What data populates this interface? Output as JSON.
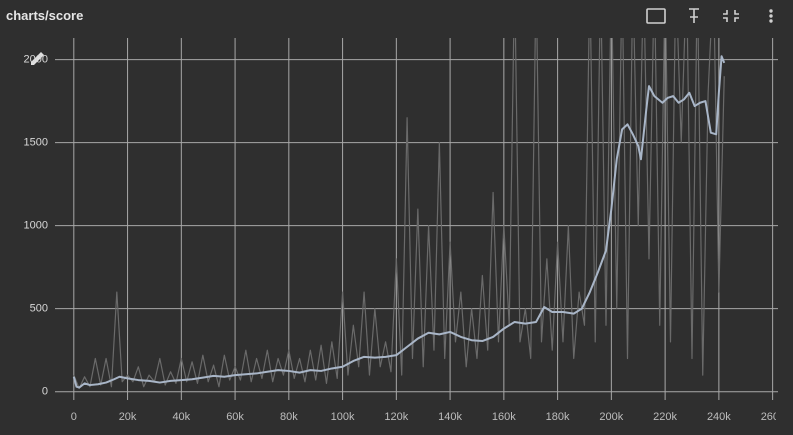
{
  "chart_data": {
    "type": "line",
    "title": "charts/score",
    "xlim": [
      -7000,
      262000
    ],
    "ylim": [
      -50,
      2130
    ],
    "grid": true,
    "xticks": [
      0,
      {
        "value": 20000,
        "label": "20k"
      },
      {
        "value": 40000,
        "label": "40k"
      },
      {
        "value": 60000,
        "label": "60k"
      },
      {
        "value": 80000,
        "label": "80k"
      },
      {
        "value": 100000,
        "label": "100k"
      },
      {
        "value": 120000,
        "label": "120k"
      },
      {
        "value": 140000,
        "label": "140k"
      },
      {
        "value": 160000,
        "label": "160k"
      },
      {
        "value": 180000,
        "label": "180k"
      },
      {
        "value": 200000,
        "label": "200k"
      },
      {
        "value": 220000,
        "label": "220k"
      },
      {
        "value": 240000,
        "label": "240k"
      },
      {
        "value": 260000,
        "label": "260k"
      }
    ],
    "yticks": [
      0,
      500,
      1000,
      1500,
      2000
    ],
    "series": [
      {
        "color": "#6a6a6a",
        "x": [
          0,
          2000,
          4000,
          6000,
          8000,
          10000,
          12000,
          14000,
          16000,
          18000,
          20000,
          22000,
          24000,
          26000,
          28000,
          30000,
          32000,
          34000,
          36000,
          38000,
          40000,
          42000,
          44000,
          46000,
          48000,
          50000,
          52000,
          54000,
          56000,
          58000,
          60000,
          62000,
          64000,
          66000,
          68000,
          70000,
          72000,
          74000,
          76000,
          78000,
          80000,
          82000,
          84000,
          86000,
          88000,
          90000,
          92000,
          94000,
          96000,
          98000,
          100000,
          102000,
          104000,
          106000,
          108000,
          110000,
          112000,
          114000,
          116000,
          118000,
          120000,
          122000,
          124000,
          126000,
          128000,
          130000,
          132000,
          134000,
          136000,
          138000,
          140000,
          142000,
          144000,
          146000,
          148000,
          150000,
          152000,
          154000,
          156000,
          158000,
          160000,
          162000,
          164000,
          166000,
          168000,
          170000,
          172000,
          174000,
          176000,
          178000,
          180000,
          182000,
          184000,
          186000,
          188000,
          190000,
          192000,
          194000,
          196000,
          198000,
          200000,
          202000,
          204000,
          206000,
          208000,
          210000,
          212000,
          214000,
          216000,
          218000,
          220000,
          222000,
          224000,
          226000,
          228000,
          230000,
          232000,
          234000,
          236000,
          238000,
          240000,
          242000
        ],
        "values": [
          100,
          20,
          90,
          30,
          200,
          40,
          200,
          30,
          600,
          60,
          100,
          60,
          150,
          30,
          100,
          60,
          200,
          40,
          120,
          50,
          200,
          60,
          180,
          50,
          220,
          60,
          160,
          30,
          220,
          70,
          150,
          70,
          250,
          60,
          200,
          80,
          250,
          60,
          200,
          100,
          250,
          80,
          200,
          60,
          250,
          70,
          280,
          50,
          300,
          80,
          600,
          100,
          400,
          150,
          600,
          100,
          500,
          150,
          300,
          120,
          800,
          100,
          1650,
          200,
          1100,
          150,
          1000,
          250,
          1500,
          200,
          900,
          300,
          600,
          150,
          500,
          200,
          700,
          250,
          1200,
          300,
          1000,
          400,
          2500,
          300,
          500,
          200,
          2500,
          300,
          800,
          250,
          900,
          300,
          1000,
          200,
          600,
          400,
          2500,
          300,
          2500,
          400,
          2500,
          500,
          2500,
          200,
          2500,
          1000,
          2500,
          800,
          2500,
          400,
          2500,
          300,
          2500,
          1500,
          2500,
          200,
          2500,
          100,
          1800,
          2500,
          600,
          1900
        ]
      },
      {
        "color": "#a9b6c8",
        "x": [
          0,
          1000,
          2000,
          4000,
          6000,
          9000,
          12000,
          15000,
          17000,
          20000,
          24000,
          28000,
          32000,
          36000,
          40000,
          44000,
          48000,
          52000,
          56000,
          60000,
          64000,
          68000,
          72000,
          76000,
          80000,
          84000,
          88000,
          92000,
          96000,
          100000,
          104000,
          108000,
          112000,
          116000,
          120000,
          124000,
          128000,
          132000,
          136000,
          140000,
          144000,
          148000,
          152000,
          156000,
          160000,
          164000,
          168000,
          172000,
          175000,
          178000,
          182000,
          186000,
          189000,
          192000,
          195000,
          198000,
          200000,
          202000,
          204000,
          206000,
          208000,
          210000,
          211000,
          213000,
          214000,
          216000,
          219000,
          221000,
          223000,
          225000,
          227000,
          229000,
          231000,
          233000,
          235000,
          237000,
          239000,
          240000,
          241000,
          242000
        ],
        "values": [
          90,
          30,
          25,
          50,
          40,
          45,
          55,
          75,
          90,
          80,
          70,
          65,
          55,
          65,
          70,
          75,
          85,
          95,
          90,
          100,
          105,
          110,
          120,
          130,
          125,
          115,
          130,
          125,
          140,
          150,
          185,
          210,
          205,
          210,
          220,
          270,
          320,
          355,
          345,
          360,
          330,
          310,
          305,
          330,
          380,
          420,
          410,
          420,
          510,
          480,
          480,
          470,
          500,
          600,
          720,
          850,
          1100,
          1400,
          1580,
          1610,
          1550,
          1480,
          1400,
          1700,
          1840,
          1780,
          1740,
          1770,
          1780,
          1740,
          1760,
          1800,
          1720,
          1740,
          1750,
          1560,
          1550,
          1800,
          2020,
          1980
        ]
      }
    ]
  }
}
